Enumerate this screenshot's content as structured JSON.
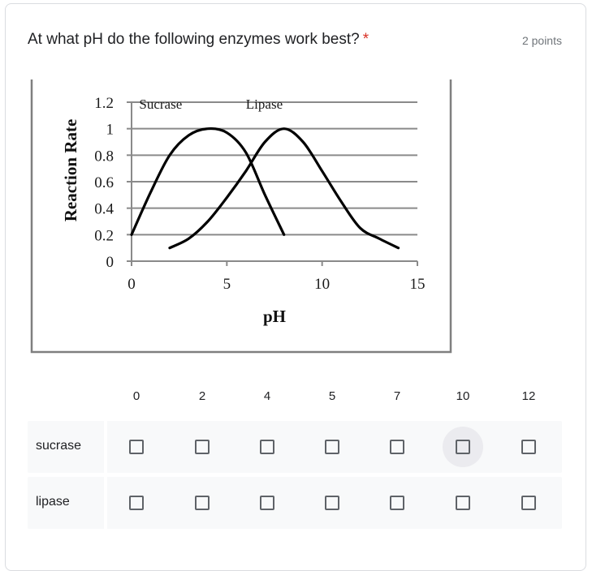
{
  "question": {
    "title": "At what pH do the following enzymes work best?",
    "required_mark": "*",
    "points": "2 points"
  },
  "chart_data": {
    "type": "line",
    "xlabel": "pH",
    "ylabel": "Reaction Rate",
    "x_ticks": [
      "0",
      "5",
      "10",
      "15"
    ],
    "y_ticks": [
      "0",
      "0.2",
      "0.4",
      "0.6",
      "0.8",
      "1",
      "1.2"
    ],
    "xlim": [
      0,
      15
    ],
    "ylim": [
      0,
      1.2
    ],
    "grid": true,
    "series": [
      {
        "name": "Sucrase",
        "x": [
          0,
          1,
          2,
          3,
          4,
          5,
          6,
          7,
          8
        ],
        "y": [
          0.2,
          0.52,
          0.8,
          0.95,
          1.0,
          0.97,
          0.82,
          0.5,
          0.2
        ]
      },
      {
        "name": "Lipase",
        "x": [
          2,
          3,
          4,
          5,
          6,
          7,
          8,
          9,
          10,
          11,
          12,
          13,
          14
        ],
        "y": [
          0.1,
          0.17,
          0.3,
          0.48,
          0.68,
          0.9,
          1.0,
          0.9,
          0.68,
          0.45,
          0.25,
          0.17,
          0.1
        ]
      }
    ]
  },
  "grid": {
    "columns": [
      "0",
      "2",
      "4",
      "5",
      "7",
      "10",
      "12"
    ],
    "rows": [
      {
        "label": "sucrase"
      },
      {
        "label": "lipase"
      }
    ]
  }
}
